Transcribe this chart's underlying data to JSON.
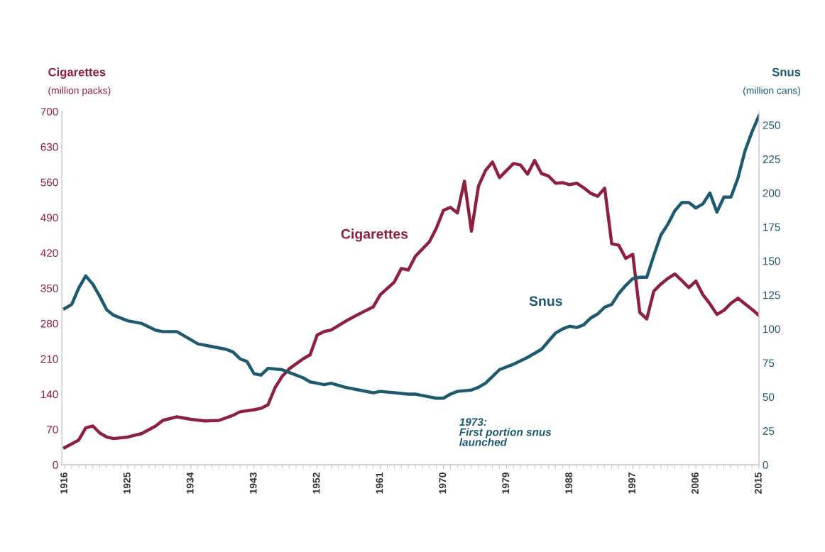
{
  "chart_data": {
    "type": "line",
    "ylabel": "Cigarettes\n(million packs)",
    "y2label": "Snus\n(million cans)",
    "series": [
      {
        "name": "Cigarettes",
        "color": "#8e1f3f",
        "axis": "y",
        "x": [
          1916,
          1918,
          1919,
          1920,
          1921,
          1922,
          1923,
          1925,
          1927,
          1929,
          1930,
          1932,
          1934,
          1936,
          1938,
          1940,
          1941,
          1943,
          1944,
          1945,
          1946,
          1947,
          1948,
          1950,
          1951,
          1952,
          1953,
          1954,
          1956,
          1958,
          1960,
          1961,
          1963,
          1964,
          1965,
          1966,
          1968,
          1969,
          1970,
          1971,
          1972,
          1973,
          1974,
          1975,
          1976,
          1977,
          1978,
          1979,
          1980,
          1981,
          1982,
          1983,
          1984,
          1985,
          1986,
          1987,
          1988,
          1989,
          1990,
          1991,
          1992,
          1993,
          1994,
          1995,
          1996,
          1997,
          1998,
          1999,
          2000,
          2001,
          2002,
          2003,
          2004,
          2005,
          2006,
          2007,
          2008,
          2009,
          2010,
          2011,
          2012,
          2013,
          2014,
          2015
        ],
        "values": [
          34,
          49,
          73,
          77,
          63,
          55,
          52,
          55,
          62,
          77,
          88,
          95,
          90,
          87,
          88,
          98,
          105,
          109,
          112,
          119,
          153,
          175,
          190,
          210,
          218,
          257,
          264,
          267,
          284,
          299,
          313,
          337,
          362,
          389,
          386,
          413,
          442,
          469,
          504,
          510,
          499,
          562,
          463,
          552,
          583,
          600,
          569,
          583,
          597,
          594,
          576,
          603,
          577,
          572,
          558,
          559,
          555,
          558,
          549,
          538,
          532,
          548,
          438,
          435,
          409,
          417,
          302,
          289,
          344,
          358,
          369,
          378,
          365,
          351,
          364,
          337,
          319,
          298,
          306,
          320,
          330,
          319,
          308,
          296
        ]
      },
      {
        "name": "Snus",
        "color": "#1d5a70",
        "axis": "y2",
        "x": [
          1916,
          1917,
          1918,
          1919,
          1920,
          1921,
          1922,
          1923,
          1925,
          1927,
          1929,
          1930,
          1932,
          1934,
          1935,
          1937,
          1939,
          1940,
          1941,
          1942,
          1943,
          1944,
          1945,
          1947,
          1948,
          1950,
          1951,
          1952,
          1953,
          1954,
          1956,
          1958,
          1960,
          1961,
          1963,
          1965,
          1966,
          1968,
          1969,
          1970,
          1971,
          1972,
          1974,
          1975,
          1976,
          1977,
          1978,
          1980,
          1982,
          1984,
          1985,
          1986,
          1987,
          1988,
          1989,
          1990,
          1991,
          1992,
          1993,
          1994,
          1995,
          1996,
          1997,
          1998,
          1999,
          2000,
          2001,
          2002,
          2003,
          2004,
          2005,
          2006,
          2007,
          2008,
          2009,
          2010,
          2011,
          2012,
          2013,
          2014,
          2015
        ],
        "values": [
          115,
          118,
          130,
          139,
          133,
          124,
          114,
          110,
          106,
          104,
          99,
          98,
          98,
          92,
          89,
          87,
          85,
          83,
          78,
          76,
          67,
          66,
          71,
          70,
          68,
          64,
          61,
          60,
          59,
          60,
          57,
          55,
          53,
          54,
          53,
          52,
          52,
          50,
          49,
          49,
          52,
          54,
          55,
          57,
          60,
          65,
          70,
          74,
          79,
          85,
          91,
          97,
          100,
          102,
          101,
          103,
          108,
          111,
          116,
          118,
          126,
          132,
          137,
          138,
          138,
          154,
          169,
          177,
          187,
          193,
          193,
          189,
          192,
          200,
          186,
          197,
          197,
          211,
          231,
          245,
          257
        ]
      }
    ],
    "xlim": [
      1915.6,
      2015
    ],
    "xticks": [
      1916,
      1925,
      1934,
      1943,
      1952,
      1961,
      1970,
      1979,
      1988,
      1997,
      2006,
      2015
    ],
    "ylim": [
      0,
      700
    ],
    "yticks": [
      0,
      70,
      140,
      210,
      280,
      350,
      420,
      490,
      560,
      630,
      700
    ],
    "y2lim": [
      0,
      260
    ],
    "y2ticks": [
      0,
      25,
      50,
      75,
      100,
      125,
      150,
      175,
      200,
      225,
      250
    ],
    "annotations": [
      "1973:\nFirst portion snus\nlaunched"
    ],
    "grid": false,
    "legend": false,
    "line_style": "solid",
    "marker": "none"
  }
}
